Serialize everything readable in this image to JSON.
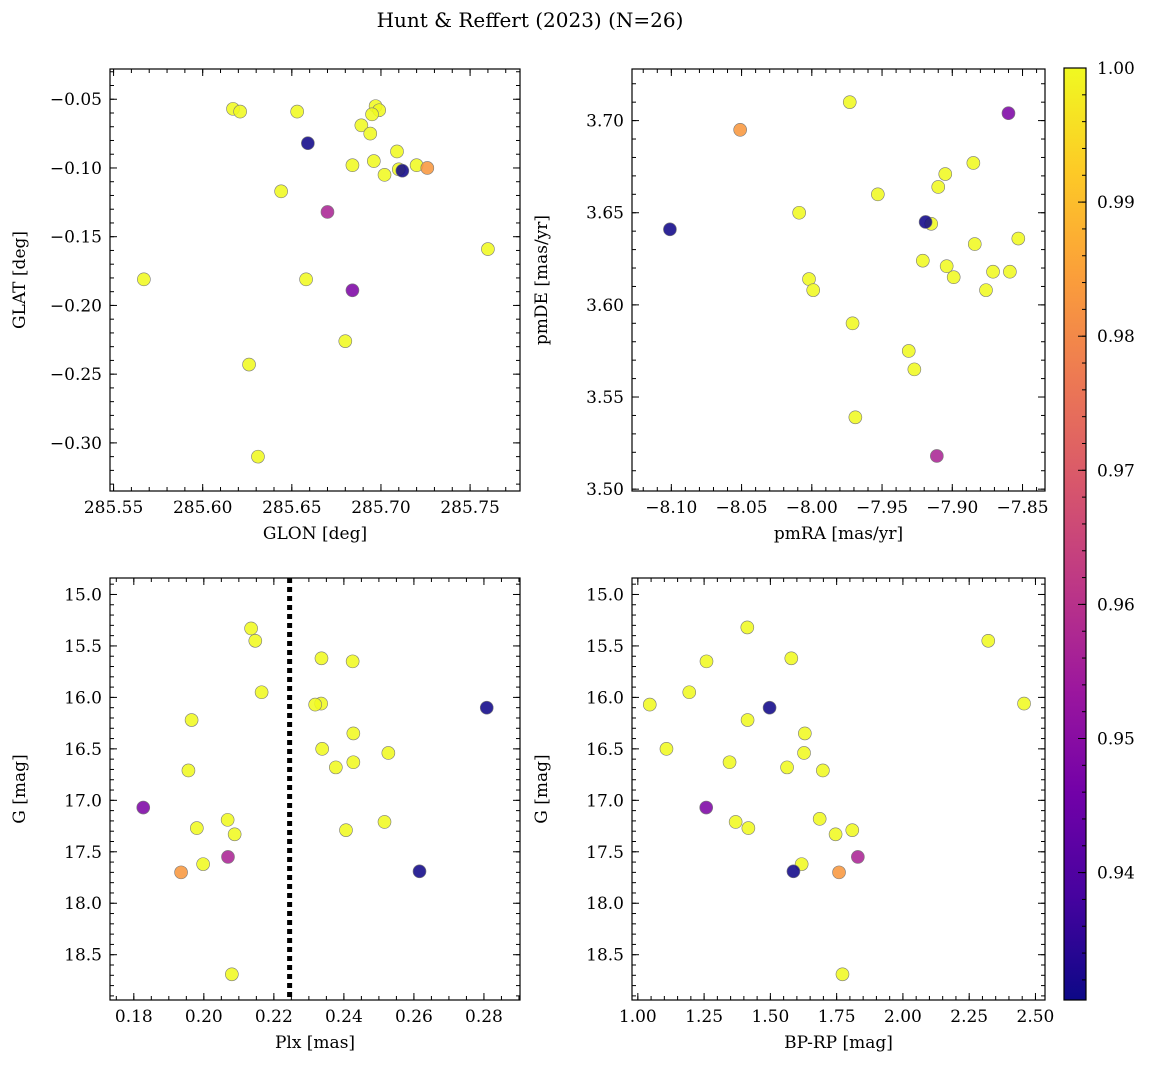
{
  "figure_title": "Hunt & Reffert (2023) (N=26)",
  "colors": {
    "cmap": [
      "#0d0887",
      "#46039f",
      "#7201a8",
      "#9c179e",
      "#bd3786",
      "#d8576b",
      "#ed7953",
      "#fb9f3a",
      "#fdca26",
      "#f0f921"
    ],
    "point_edge": "#7a7a7a"
  },
  "chart_data": [
    {
      "type": "scatter",
      "id": "glon-glat",
      "xlabel": "GLON [deg]",
      "ylabel": "GLAT [deg]",
      "xlim": [
        285.548,
        285.778
      ],
      "ylim": [
        -0.335,
        -0.028
      ],
      "xticks": [
        285.55,
        285.6,
        285.65,
        285.7,
        285.75
      ],
      "xticklabels": [
        "285.55",
        "285.60",
        "285.65",
        "285.70",
        "285.75"
      ],
      "yticks": [
        -0.05,
        -0.1,
        -0.15,
        -0.2,
        -0.25,
        -0.3
      ],
      "yticklabels": [
        "−0.05",
        "−0.10",
        "−0.15",
        "−0.20",
        "−0.25",
        "−0.30"
      ],
      "xminor": 0.01,
      "yminor": 0.01,
      "points": [
        {
          "x": 285.617,
          "y": -0.057,
          "c": 1.0
        },
        {
          "x": 285.621,
          "y": -0.059,
          "c": 1.0
        },
        {
          "x": 285.653,
          "y": -0.059,
          "c": 1.0
        },
        {
          "x": 285.697,
          "y": -0.055,
          "c": 1.0
        },
        {
          "x": 285.699,
          "y": -0.058,
          "c": 1.0
        },
        {
          "x": 285.695,
          "y": -0.061,
          "c": 1.0
        },
        {
          "x": 285.689,
          "y": -0.069,
          "c": 1.0
        },
        {
          "x": 285.694,
          "y": -0.075,
          "c": 1.0
        },
        {
          "x": 285.709,
          "y": -0.088,
          "c": 1.0
        },
        {
          "x": 285.696,
          "y": -0.095,
          "c": 1.0
        },
        {
          "x": 285.684,
          "y": -0.098,
          "c": 1.0
        },
        {
          "x": 285.72,
          "y": -0.098,
          "c": 1.0
        },
        {
          "x": 285.71,
          "y": -0.101,
          "c": 1.0
        },
        {
          "x": 285.702,
          "y": -0.105,
          "c": 1.0
        },
        {
          "x": 285.644,
          "y": -0.117,
          "c": 1.0
        },
        {
          "x": 285.76,
          "y": -0.159,
          "c": 1.0
        },
        {
          "x": 285.567,
          "y": -0.181,
          "c": 1.0
        },
        {
          "x": 285.658,
          "y": -0.181,
          "c": 1.0
        },
        {
          "x": 285.68,
          "y": -0.226,
          "c": 1.0
        },
        {
          "x": 285.626,
          "y": -0.243,
          "c": 1.0
        },
        {
          "x": 285.631,
          "y": -0.31,
          "c": 1.0
        },
        {
          "x": 285.726,
          "y": -0.1,
          "c": 0.983
        },
        {
          "x": 285.712,
          "y": -0.102,
          "c": 0.931
        },
        {
          "x": 285.659,
          "y": -0.082,
          "c": 0.931
        },
        {
          "x": 285.67,
          "y": -0.132,
          "c": 0.957
        },
        {
          "x": 285.684,
          "y": -0.189,
          "c": 0.948
        }
      ]
    },
    {
      "type": "scatter",
      "id": "pmra-pmde",
      "xlabel": "pmRA [mas/yr]",
      "ylabel": "pmDE [mas/yr]",
      "xlim": [
        -8.128,
        -7.834
      ],
      "ylim": [
        3.499,
        3.728
      ],
      "xticks": [
        -8.1,
        -8.05,
        -8.0,
        -7.95,
        -7.9,
        -7.85
      ],
      "xticklabels": [
        "−8.10",
        "−8.05",
        "−8.00",
        "−7.95",
        "−7.90",
        "−7.85"
      ],
      "yticks": [
        3.5,
        3.55,
        3.6,
        3.65,
        3.7
      ],
      "yticklabels": [
        "3.50",
        "3.55",
        "3.60",
        "3.65",
        "3.70"
      ],
      "xminor": 0.01,
      "yminor": 0.01,
      "points": [
        {
          "x": -7.973,
          "y": 3.71,
          "c": 1.0
        },
        {
          "x": -7.885,
          "y": 3.677,
          "c": 1.0
        },
        {
          "x": -7.905,
          "y": 3.671,
          "c": 1.0
        },
        {
          "x": -7.91,
          "y": 3.664,
          "c": 1.0
        },
        {
          "x": -7.953,
          "y": 3.66,
          "c": 1.0
        },
        {
          "x": -8.009,
          "y": 3.65,
          "c": 1.0
        },
        {
          "x": -7.915,
          "y": 3.644,
          "c": 1.0
        },
        {
          "x": -7.853,
          "y": 3.636,
          "c": 1.0
        },
        {
          "x": -7.884,
          "y": 3.633,
          "c": 1.0
        },
        {
          "x": -7.921,
          "y": 3.624,
          "c": 1.0
        },
        {
          "x": -7.904,
          "y": 3.621,
          "c": 1.0
        },
        {
          "x": -7.871,
          "y": 3.618,
          "c": 1.0
        },
        {
          "x": -7.859,
          "y": 3.618,
          "c": 1.0
        },
        {
          "x": -8.002,
          "y": 3.614,
          "c": 1.0
        },
        {
          "x": -7.899,
          "y": 3.615,
          "c": 1.0
        },
        {
          "x": -7.999,
          "y": 3.608,
          "c": 1.0
        },
        {
          "x": -7.876,
          "y": 3.608,
          "c": 1.0
        },
        {
          "x": -7.971,
          "y": 3.59,
          "c": 1.0
        },
        {
          "x": -7.931,
          "y": 3.575,
          "c": 1.0
        },
        {
          "x": -7.927,
          "y": 3.565,
          "c": 1.0
        },
        {
          "x": -7.969,
          "y": 3.539,
          "c": 1.0
        },
        {
          "x": -8.051,
          "y": 3.695,
          "c": 0.983
        },
        {
          "x": -8.101,
          "y": 3.641,
          "c": 0.931
        },
        {
          "x": -7.919,
          "y": 3.645,
          "c": 0.931
        },
        {
          "x": -7.86,
          "y": 3.704,
          "c": 0.948
        },
        {
          "x": -7.911,
          "y": 3.518,
          "c": 0.957
        }
      ]
    },
    {
      "type": "scatter",
      "id": "plx-g",
      "xlabel": "Plx [mas]",
      "ylabel": "G [mag]",
      "xlim": [
        0.1732,
        0.2903
      ],
      "ylim": [
        18.94,
        14.84
      ],
      "xticks": [
        0.18,
        0.2,
        0.22,
        0.24,
        0.26,
        0.28
      ],
      "xticklabels": [
        "0.18",
        "0.20",
        "0.22",
        "0.24",
        "0.26",
        "0.28"
      ],
      "yticks": [
        15.0,
        15.5,
        16.0,
        16.5,
        17.0,
        17.5,
        18.0,
        18.5
      ],
      "yticklabels": [
        "15.0",
        "15.5",
        "16.0",
        "16.5",
        "17.0",
        "17.5",
        "18.0",
        "18.5"
      ],
      "xminor": 0.005,
      "yminor": 0.1,
      "vline": {
        "x": 0.2245,
        "style": "dotted"
      },
      "points": [
        {
          "x": 0.2135,
          "y": 15.33,
          "c": 1.0
        },
        {
          "x": 0.2147,
          "y": 15.45,
          "c": 1.0
        },
        {
          "x": 0.2336,
          "y": 15.62,
          "c": 1.0
        },
        {
          "x": 0.2425,
          "y": 15.65,
          "c": 1.0
        },
        {
          "x": 0.2165,
          "y": 15.95,
          "c": 1.0
        },
        {
          "x": 0.2335,
          "y": 16.06,
          "c": 1.0
        },
        {
          "x": 0.2318,
          "y": 16.07,
          "c": 1.0
        },
        {
          "x": 0.1965,
          "y": 16.22,
          "c": 1.0
        },
        {
          "x": 0.2427,
          "y": 16.35,
          "c": 1.0
        },
        {
          "x": 0.2338,
          "y": 16.5,
          "c": 1.0
        },
        {
          "x": 0.2527,
          "y": 16.54,
          "c": 1.0
        },
        {
          "x": 0.2377,
          "y": 16.68,
          "c": 1.0
        },
        {
          "x": 0.2427,
          "y": 16.63,
          "c": 1.0
        },
        {
          "x": 0.1956,
          "y": 16.71,
          "c": 1.0
        },
        {
          "x": 0.2068,
          "y": 17.19,
          "c": 1.0
        },
        {
          "x": 0.2516,
          "y": 17.21,
          "c": 1.0
        },
        {
          "x": 0.198,
          "y": 17.27,
          "c": 1.0
        },
        {
          "x": 0.2406,
          "y": 17.29,
          "c": 1.0
        },
        {
          "x": 0.2088,
          "y": 17.33,
          "c": 1.0
        },
        {
          "x": 0.1998,
          "y": 17.62,
          "c": 1.0
        },
        {
          "x": 0.208,
          "y": 18.69,
          "c": 1.0
        },
        {
          "x": 0.1935,
          "y": 17.7,
          "c": 0.983
        },
        {
          "x": 0.2808,
          "y": 16.1,
          "c": 0.931
        },
        {
          "x": 0.2616,
          "y": 17.69,
          "c": 0.931
        },
        {
          "x": 0.1827,
          "y": 17.07,
          "c": 0.948
        },
        {
          "x": 0.2069,
          "y": 17.55,
          "c": 0.957
        }
      ]
    },
    {
      "type": "scatter",
      "id": "bprp-g",
      "xlabel": "BP-RP [mag]",
      "ylabel": "G [mag]",
      "xlim": [
        0.978,
        2.536
      ],
      "ylim": [
        18.94,
        14.84
      ],
      "xticks": [
        1.0,
        1.25,
        1.5,
        1.75,
        2.0,
        2.25,
        2.5
      ],
      "xticklabels": [
        "1.00",
        "1.25",
        "1.50",
        "1.75",
        "2.00",
        "2.25",
        "2.50"
      ],
      "yticks": [
        15.0,
        15.5,
        16.0,
        16.5,
        17.0,
        17.5,
        18.0,
        18.5
      ],
      "yticklabels": [
        "15.0",
        "15.5",
        "16.0",
        "16.5",
        "17.0",
        "17.5",
        "18.0",
        "18.5"
      ],
      "xminor": 0.05,
      "yminor": 0.1,
      "points": [
        {
          "x": 1.413,
          "y": 15.32,
          "c": 1.0
        },
        {
          "x": 2.322,
          "y": 15.45,
          "c": 1.0
        },
        {
          "x": 1.579,
          "y": 15.62,
          "c": 1.0
        },
        {
          "x": 1.259,
          "y": 15.65,
          "c": 1.0
        },
        {
          "x": 1.194,
          "y": 15.95,
          "c": 1.0
        },
        {
          "x": 1.045,
          "y": 16.07,
          "c": 1.0
        },
        {
          "x": 2.457,
          "y": 16.06,
          "c": 1.0
        },
        {
          "x": 1.414,
          "y": 16.22,
          "c": 1.0
        },
        {
          "x": 1.63,
          "y": 16.35,
          "c": 1.0
        },
        {
          "x": 1.108,
          "y": 16.5,
          "c": 1.0
        },
        {
          "x": 1.627,
          "y": 16.54,
          "c": 1.0
        },
        {
          "x": 1.346,
          "y": 16.63,
          "c": 1.0
        },
        {
          "x": 1.563,
          "y": 16.68,
          "c": 1.0
        },
        {
          "x": 1.698,
          "y": 16.71,
          "c": 1.0
        },
        {
          "x": 1.686,
          "y": 17.18,
          "c": 1.0
        },
        {
          "x": 1.369,
          "y": 17.21,
          "c": 1.0
        },
        {
          "x": 1.417,
          "y": 17.27,
          "c": 1.0
        },
        {
          "x": 1.809,
          "y": 17.29,
          "c": 1.0
        },
        {
          "x": 1.746,
          "y": 17.33,
          "c": 1.0
        },
        {
          "x": 1.618,
          "y": 17.62,
          "c": 1.0
        },
        {
          "x": 1.772,
          "y": 18.69,
          "c": 1.0
        },
        {
          "x": 1.759,
          "y": 17.7,
          "c": 0.983
        },
        {
          "x": 1.497,
          "y": 16.1,
          "c": 0.931
        },
        {
          "x": 1.587,
          "y": 17.69,
          "c": 0.931
        },
        {
          "x": 1.258,
          "y": 17.07,
          "c": 0.948
        },
        {
          "x": 1.83,
          "y": 17.55,
          "c": 0.957
        }
      ]
    }
  ],
  "colorbar": {
    "min": 0.9305,
    "max": 1.0,
    "ticks": [
      0.94,
      0.95,
      0.96,
      0.97,
      0.98,
      0.99,
      1.0
    ],
    "ticklabels": [
      "0.94",
      "0.95",
      "0.96",
      "0.97",
      "0.98",
      "0.99",
      "1.00"
    ],
    "minor": 0.002
  }
}
